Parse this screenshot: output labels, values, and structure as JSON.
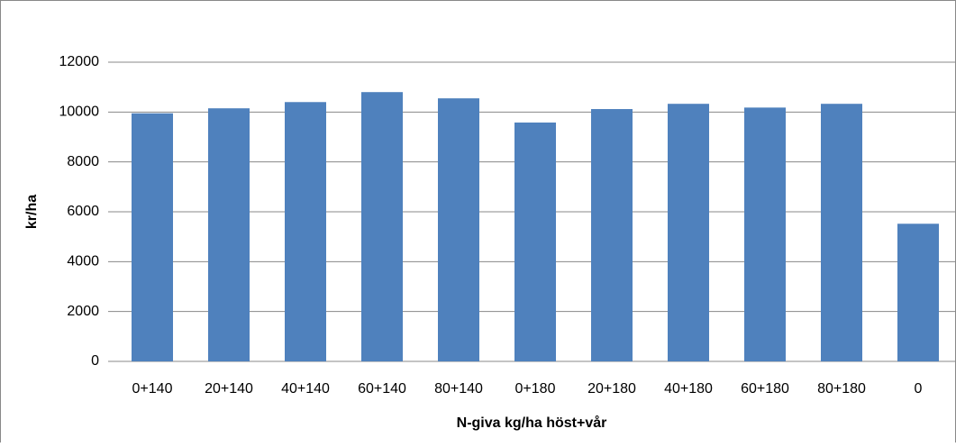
{
  "chart_data": {
    "type": "bar",
    "x_label": "N-giva kg/ha höst+vår",
    "y_label": "kr/ha",
    "categories": [
      "0+140",
      "20+140",
      "40+140",
      "60+140",
      "80+140",
      "0+180",
      "20+180",
      "40+180",
      "60+180",
      "80+180",
      "0"
    ],
    "values": [
      9950,
      10150,
      10400,
      10800,
      10550,
      9580,
      10120,
      10330,
      10180,
      10330,
      5520
    ],
    "color": "#4f81bd",
    "ylim": [
      0,
      12000
    ],
    "yticks": [
      0,
      2000,
      4000,
      6000,
      8000,
      10000,
      12000
    ],
    "grid": true
  }
}
